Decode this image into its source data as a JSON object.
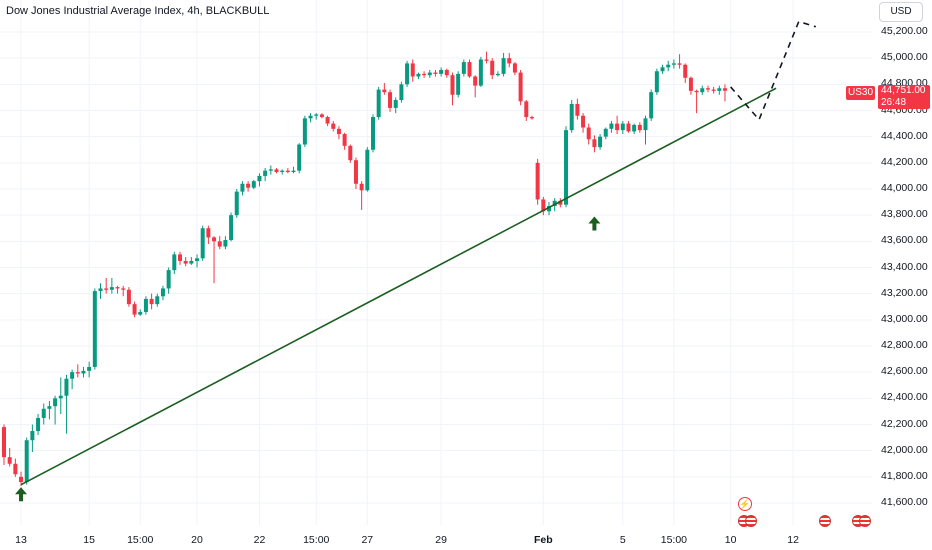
{
  "header": {
    "title": "Dow Jones Industrial Average Index, 4h, BLACKBULL",
    "currency": "USD"
  },
  "price_label": {
    "symbol": "US30",
    "price": "44,751.00",
    "countdown": "26:48"
  },
  "colors": {
    "up": "#089981",
    "down": "#f23645",
    "trendline": "#1b5e20",
    "arrow": "#1b5e20",
    "projection": "#131722",
    "grid": "#f0f3fa"
  },
  "icons": [
    "lightning-event-icon",
    "us-flag-icon"
  ],
  "chart_data": {
    "type": "candlestick",
    "title": "Dow Jones Industrial Average Index, 4h, BLACKBULL",
    "y_unit": "USD",
    "ylim": [
      41475,
      45335
    ],
    "ytick_labels": [
      "45,200.00",
      "45,000.00",
      "44,800.00",
      "44,600.00",
      "44,400.00",
      "44,200.00",
      "44,000.00",
      "43,800.00",
      "43,600.00",
      "43,400.00",
      "43,200.00",
      "43,000.00",
      "42,800.00",
      "42,600.00",
      "42,400.00",
      "42,200.00",
      "42,000.00",
      "41,800.00",
      "41,600.00"
    ],
    "ytick_values": [
      45200,
      45000,
      44800,
      44600,
      44400,
      44200,
      44000,
      43800,
      43600,
      43400,
      43200,
      43000,
      42800,
      42600,
      42400,
      42200,
      42000,
      41800,
      41600
    ],
    "xtick_labels": [
      {
        "label": "13",
        "bar": 3
      },
      {
        "label": "15",
        "bar": 15
      },
      {
        "label": "15:00",
        "bar": 24
      },
      {
        "label": "20",
        "bar": 34
      },
      {
        "label": "22",
        "bar": 45
      },
      {
        "label": "15:00",
        "bar": 55
      },
      {
        "label": "27",
        "bar": 64
      },
      {
        "label": "29",
        "bar": 77
      },
      {
        "label": "Feb",
        "bar": 95,
        "bold": true
      },
      {
        "label": "5",
        "bar": 109
      },
      {
        "label": "15:00",
        "bar": 118
      },
      {
        "label": "10",
        "bar": 128
      },
      {
        "label": "12",
        "bar": 139
      }
    ],
    "candles": [
      [
        42180,
        42200,
        41890,
        41950
      ],
      [
        41950,
        42020,
        41880,
        41900
      ],
      [
        41900,
        41940,
        41800,
        41820
      ],
      [
        41800,
        41840,
        41730,
        41760
      ],
      [
        41760,
        42100,
        41740,
        42080
      ],
      [
        42080,
        42200,
        41990,
        42150
      ],
      [
        42150,
        42280,
        42120,
        42250
      ],
      [
        42250,
        42360,
        42200,
        42320
      ],
      [
        42320,
        42380,
        42240,
        42340
      ],
      [
        42340,
        42420,
        42200,
        42400
      ],
      [
        42400,
        42560,
        42280,
        42420
      ],
      [
        42420,
        42580,
        42130,
        42550
      ],
      [
        42550,
        42620,
        42470,
        42600
      ],
      [
        42600,
        42660,
        42560,
        42590
      ],
      [
        42590,
        42640,
        42560,
        42610
      ],
      [
        42610,
        42680,
        42560,
        42640
      ],
      [
        42640,
        43240,
        42620,
        43220
      ],
      [
        43220,
        43280,
        43160,
        43240
      ],
      [
        43240,
        43320,
        43200,
        43230
      ],
      [
        43230,
        43320,
        43200,
        43250
      ],
      [
        43250,
        43260,
        43200,
        43240
      ],
      [
        43240,
        43260,
        43180,
        43230
      ],
      [
        43230,
        43250,
        43100,
        43120
      ],
      [
        43120,
        43140,
        43020,
        43040
      ],
      [
        43040,
        43080,
        43030,
        43060
      ],
      [
        43060,
        43180,
        43040,
        43160
      ],
      [
        43160,
        43200,
        43080,
        43120
      ],
      [
        43120,
        43200,
        43100,
        43180
      ],
      [
        43180,
        43260,
        43150,
        43240
      ],
      [
        43240,
        43400,
        43200,
        43380
      ],
      [
        43380,
        43520,
        43350,
        43500
      ],
      [
        43500,
        43520,
        43420,
        43450
      ],
      [
        43450,
        43480,
        43410,
        43430
      ],
      [
        43430,
        43480,
        43420,
        43450
      ],
      [
        43450,
        43500,
        43400,
        43470
      ],
      [
        43470,
        43720,
        43450,
        43700
      ],
      [
        43700,
        43720,
        43580,
        43630
      ],
      [
        43630,
        43640,
        43280,
        43600
      ],
      [
        43600,
        43640,
        43540,
        43560
      ],
      [
        43560,
        43640,
        43540,
        43610
      ],
      [
        43610,
        43820,
        43600,
        43800
      ],
      [
        43800,
        44000,
        43780,
        43980
      ],
      [
        43980,
        44060,
        43950,
        44040
      ],
      [
        44040,
        44060,
        43980,
        44010
      ],
      [
        44010,
        44070,
        44000,
        44060
      ],
      [
        44060,
        44120,
        44020,
        44100
      ],
      [
        44100,
        44160,
        44060,
        44140
      ],
      [
        44140,
        44180,
        44110,
        44150
      ],
      [
        44150,
        44160,
        44120,
        44130
      ],
      [
        44130,
        44150,
        44110,
        44140
      ],
      [
        44140,
        44160,
        44120,
        44130
      ],
      [
        44130,
        44170,
        44120,
        44140
      ],
      [
        44140,
        44350,
        44120,
        44340
      ],
      [
        44340,
        44560,
        44320,
        44540
      ],
      [
        44540,
        44580,
        44510,
        44560
      ],
      [
        44560,
        44580,
        44530,
        44570
      ],
      [
        44570,
        44580,
        44540,
        44550
      ],
      [
        44550,
        44560,
        44480,
        44500
      ],
      [
        44500,
        44520,
        44440,
        44460
      ],
      [
        44460,
        44480,
        44380,
        44420
      ],
      [
        44420,
        44430,
        44300,
        44330
      ],
      [
        44330,
        44340,
        44200,
        44220
      ],
      [
        44220,
        44240,
        44000,
        44040
      ],
      [
        44040,
        44060,
        43840,
        43990
      ],
      [
        43990,
        44320,
        43980,
        44300
      ],
      [
        44300,
        44570,
        44280,
        44550
      ],
      [
        44550,
        44780,
        44530,
        44760
      ],
      [
        44760,
        44810,
        44720,
        44740
      ],
      [
        44740,
        44760,
        44590,
        44620
      ],
      [
        44620,
        44700,
        44580,
        44680
      ],
      [
        44680,
        44820,
        44660,
        44800
      ],
      [
        44800,
        44980,
        44780,
        44960
      ],
      [
        44960,
        44990,
        44820,
        44860
      ],
      [
        44860,
        44890,
        44840,
        44880
      ],
      [
        44880,
        44900,
        44850,
        44870
      ],
      [
        44870,
        44910,
        44850,
        44890
      ],
      [
        44890,
        44910,
        44860,
        44880
      ],
      [
        44880,
        44930,
        44860,
        44910
      ],
      [
        44910,
        44920,
        44850,
        44870
      ],
      [
        44870,
        44890,
        44640,
        44720
      ],
      [
        44720,
        44900,
        44700,
        44880
      ],
      [
        44880,
        44990,
        44860,
        44970
      ],
      [
        44970,
        44990,
        44850,
        44860
      ],
      [
        44860,
        44870,
        44700,
        44790
      ],
      [
        44790,
        45010,
        44780,
        44990
      ],
      [
        44990,
        45050,
        44960,
        44980
      ],
      [
        44980,
        45000,
        44840,
        44870
      ],
      [
        44870,
        44900,
        44860,
        44880
      ],
      [
        44880,
        45040,
        44860,
        45000
      ],
      [
        45000,
        45040,
        44930,
        44960
      ],
      [
        44960,
        44970,
        44870,
        44890
      ],
      [
        44890,
        44910,
        44640,
        44670
      ],
      [
        44670,
        44680,
        44520,
        44550
      ],
      [
        44550,
        44560,
        44530,
        44540
      ],
      [
        44200,
        44230,
        43880,
        43920
      ],
      [
        43920,
        43940,
        43800,
        43830
      ],
      [
        43830,
        43900,
        43800,
        43870
      ],
      [
        43870,
        43930,
        43830,
        43910
      ],
      [
        43910,
        43930,
        43860,
        43880
      ],
      [
        43880,
        44480,
        43860,
        44450
      ],
      [
        44450,
        44680,
        44430,
        44650
      ],
      [
        44650,
        44690,
        44530,
        44560
      ],
      [
        44560,
        44580,
        44430,
        44470
      ],
      [
        44470,
        44500,
        44340,
        44380
      ],
      [
        44380,
        44410,
        44280,
        44320
      ],
      [
        44320,
        44420,
        44300,
        44400
      ],
      [
        44400,
        44470,
        44380,
        44460
      ],
      [
        44460,
        44520,
        44430,
        44500
      ],
      [
        44500,
        44560,
        44420,
        44450
      ],
      [
        44450,
        44520,
        44420,
        44500
      ],
      [
        44500,
        44520,
        44430,
        44440
      ],
      [
        44440,
        44500,
        44420,
        44490
      ],
      [
        44490,
        44510,
        44430,
        44450
      ],
      [
        44450,
        44560,
        44340,
        44540
      ],
      [
        44540,
        44760,
        44520,
        44740
      ],
      [
        44740,
        44920,
        44720,
        44900
      ],
      [
        44900,
        44950,
        44880,
        44930
      ],
      [
        44930,
        44980,
        44900,
        44950
      ],
      [
        44950,
        44990,
        44920,
        44960
      ],
      [
        44960,
        45030,
        44920,
        44950
      ],
      [
        44950,
        44960,
        44810,
        44850
      ],
      [
        44850,
        44860,
        44720,
        44750
      ],
      [
        44750,
        44760,
        44580,
        44740
      ],
      [
        44740,
        44790,
        44720,
        44770
      ],
      [
        44770,
        44790,
        44740,
        44760
      ],
      [
        44760,
        44780,
        44730,
        44750
      ],
      [
        44750,
        44790,
        44720,
        44770
      ],
      [
        44770,
        44800,
        44670,
        44751
      ]
    ],
    "trendline": {
      "from": {
        "bar": 3,
        "price": 41740
      },
      "to": {
        "bar": 136,
        "price": 44770
      }
    },
    "projection": [
      {
        "bar": 128,
        "price": 44780
      },
      {
        "bar": 133,
        "price": 44530
      },
      {
        "bar": 140,
        "price": 45280
      },
      {
        "bar": 143,
        "price": 45240
      }
    ],
    "markers": [
      {
        "type": "up-arrow",
        "bar": 3,
        "price": 41720
      },
      {
        "type": "up-arrow",
        "bar": 104,
        "price": 43790
      }
    ]
  }
}
